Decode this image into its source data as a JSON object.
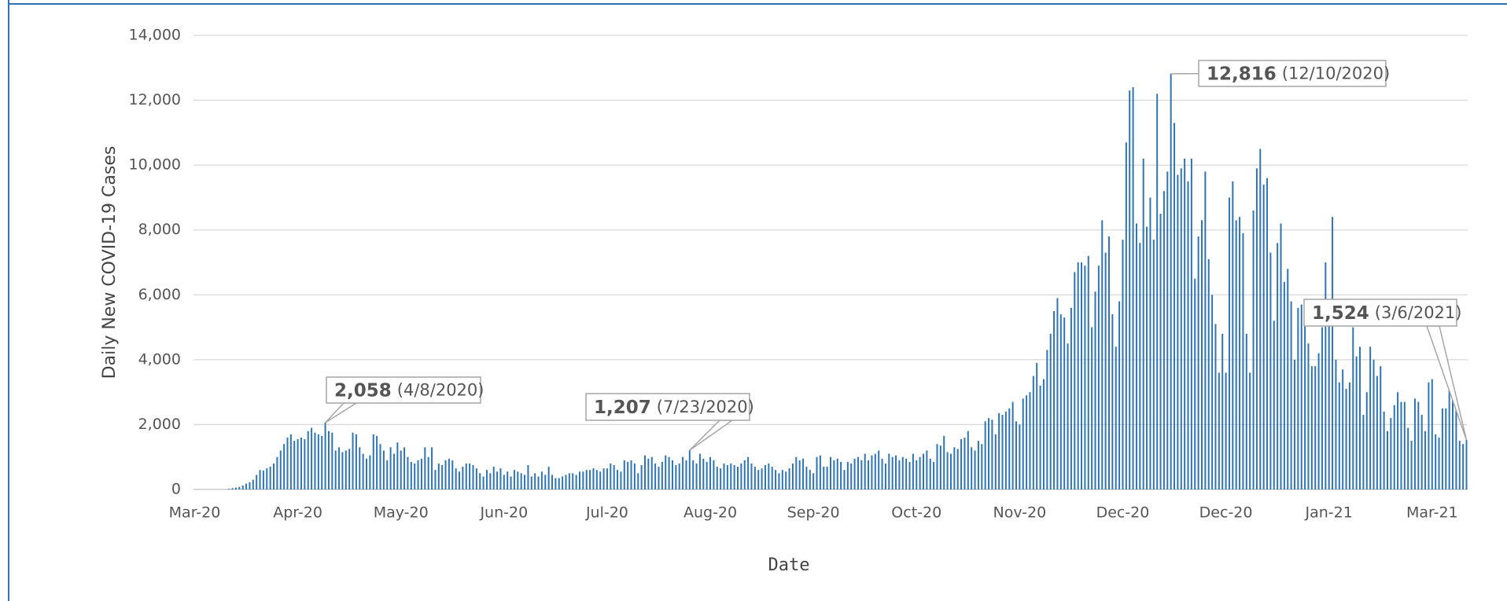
{
  "chart_data": {
    "type": "bar",
    "color": "#2e75b6",
    "grid": true,
    "y_label": "Daily New COVID-19 Cases",
    "x_label": "Date",
    "ylim": [
      0,
      14000
    ],
    "yticks": [
      0,
      {
        "value": 2000,
        "label": "2,000"
      },
      {
        "value": 4000,
        "label": "4,000"
      },
      {
        "value": 6000,
        "label": "6,000"
      },
      {
        "value": 8000,
        "label": "8,000"
      },
      {
        "value": 10000,
        "label": "10,000"
      },
      {
        "value": 12000,
        "label": "12,000"
      },
      {
        "value": 14000,
        "label": "14,000"
      }
    ],
    "categories": [
      "Mar-20",
      null,
      null,
      null,
      null,
      null,
      null,
      null,
      null,
      null,
      null,
      null,
      null,
      null,
      null,
      null,
      null,
      null,
      null,
      null,
      null,
      null,
      null,
      null,
      null,
      null,
      null,
      null,
      null,
      null,
      "Apr-20",
      null,
      null,
      null,
      null,
      null,
      null,
      null,
      null,
      null,
      null,
      null,
      null,
      null,
      null,
      null,
      null,
      null,
      null,
      null,
      null,
      null,
      null,
      null,
      null,
      null,
      null,
      null,
      null,
      null,
      "May-20",
      null,
      null,
      null,
      null,
      null,
      null,
      null,
      null,
      null,
      null,
      null,
      null,
      null,
      null,
      null,
      null,
      null,
      null,
      null,
      null,
      null,
      null,
      null,
      null,
      null,
      null,
      null,
      null,
      null,
      "Jun-20",
      null,
      null,
      null,
      null,
      null,
      null,
      null,
      null,
      null,
      null,
      null,
      null,
      null,
      null,
      null,
      null,
      null,
      null,
      null,
      null,
      null,
      null,
      null,
      null,
      null,
      null,
      null,
      null,
      null,
      "Jul-20",
      null,
      null,
      null,
      null,
      null,
      null,
      null,
      null,
      null,
      null,
      null,
      null,
      null,
      null,
      null,
      null,
      null,
      null,
      null,
      null,
      null,
      null,
      null,
      null,
      null,
      null,
      null,
      null,
      null,
      "Aug-20",
      null,
      null,
      null,
      null,
      null,
      null,
      null,
      null,
      null,
      null,
      null,
      null,
      null,
      null,
      null,
      null,
      null,
      null,
      null,
      null,
      null,
      null,
      null,
      null,
      null,
      null,
      null,
      null,
      null,
      "Sep-20",
      null,
      null,
      null,
      null,
      null,
      null,
      null,
      null,
      null,
      null,
      null,
      null,
      null,
      null,
      null,
      null,
      null,
      null,
      null,
      null,
      null,
      null,
      null,
      null,
      null,
      null,
      null,
      null,
      null,
      "Oct-20",
      null,
      null,
      null,
      null,
      null,
      null,
      null,
      null,
      null,
      null,
      null,
      null,
      null,
      null,
      null,
      null,
      null,
      null,
      null,
      null,
      null,
      null,
      null,
      null,
      null,
      null,
      null,
      null,
      null,
      "Nov-20",
      null,
      null,
      null,
      null,
      null,
      null,
      null,
      null,
      null,
      null,
      null,
      null,
      null,
      null,
      null,
      null,
      null,
      null,
      null,
      null,
      null,
      null,
      null,
      null,
      null,
      null,
      null,
      null,
      null,
      "Dec-20",
      null,
      null,
      null,
      null,
      null,
      null,
      null,
      null,
      null,
      null,
      null,
      null,
      null,
      null,
      null,
      null,
      null,
      null,
      null,
      null,
      null,
      null,
      null,
      null,
      null,
      null,
      null,
      null,
      null,
      "Dec-20",
      null,
      null,
      null,
      null,
      null,
      null,
      null,
      null,
      null,
      null,
      null,
      null,
      null,
      null,
      null,
      null,
      null,
      null,
      null,
      null,
      null,
      null,
      null,
      null,
      null,
      null,
      null,
      null,
      null,
      "Jan-21",
      null,
      null,
      null,
      null,
      null,
      null,
      null,
      null,
      null,
      null,
      null,
      null,
      null,
      null,
      null,
      null,
      null,
      null,
      null,
      null,
      null,
      null,
      null,
      null,
      null,
      null,
      null,
      null,
      null,
      "Mar-21",
      null,
      null,
      null,
      null,
      null,
      null,
      null,
      null,
      null,
      null
    ],
    "values": [
      0,
      0,
      0,
      0,
      0,
      0,
      0,
      0,
      0,
      0,
      20,
      40,
      60,
      80,
      120,
      180,
      220,
      300,
      450,
      600,
      580,
      650,
      700,
      800,
      1000,
      1200,
      1400,
      1600,
      1700,
      1500,
      1550,
      1600,
      1550,
      1800,
      1900,
      1750,
      1700,
      1650,
      2058,
      1800,
      1750,
      1200,
      1300,
      1150,
      1200,
      1250,
      1750,
      1700,
      1300,
      1100,
      950,
      1050,
      1700,
      1650,
      1400,
      1200,
      900,
      1300,
      1100,
      1450,
      1200,
      1300,
      1000,
      850,
      800,
      900,
      950,
      1300,
      1000,
      1300,
      600,
      800,
      750,
      900,
      950,
      900,
      650,
      550,
      700,
      800,
      800,
      750,
      650,
      500,
      400,
      600,
      500,
      700,
      550,
      650,
      450,
      550,
      400,
      600,
      550,
      500,
      450,
      750,
      400,
      500,
      400,
      550,
      450,
      700,
      450,
      350,
      350,
      400,
      450,
      500,
      500,
      450,
      550,
      550,
      600,
      600,
      650,
      600,
      550,
      650,
      650,
      800,
      750,
      600,
      550,
      900,
      850,
      900,
      800,
      500,
      750,
      1050,
      950,
      1000,
      800,
      700,
      850,
      1050,
      1000,
      900,
      750,
      800,
      1000,
      900,
      1207,
      900,
      800,
      1100,
      950,
      850,
      1000,
      900,
      700,
      650,
      800,
      750,
      800,
      750,
      700,
      800,
      900,
      1000,
      800,
      700,
      600,
      650,
      750,
      800,
      700,
      600,
      500,
      600,
      550,
      650,
      800,
      1000,
      900,
      950,
      700,
      600,
      500,
      1000,
      1050,
      700,
      700,
      1000,
      900,
      950,
      850,
      600,
      850,
      800,
      950,
      1000,
      900,
      1100,
      900,
      1050,
      1100,
      1200,
      950,
      800,
      1100,
      1000,
      1050,
      900,
      1000,
      950,
      850,
      1100,
      900,
      1000,
      1100,
      1200,
      950,
      850,
      1400,
      1350,
      1650,
      1150,
      1100,
      1300,
      1250,
      1550,
      1600,
      1800,
      1300,
      1200,
      1500,
      1400,
      2100,
      2200,
      2150,
      1700,
      2350,
      2300,
      2400,
      2500,
      2700,
      2100,
      2000,
      2800,
      2900,
      3000,
      3500,
      3900,
      3200,
      3400,
      4300,
      4800,
      5500,
      5900,
      5400,
      5300,
      4500,
      5600,
      6700,
      7000,
      7000,
      6900,
      7200,
      5000,
      6100,
      6900,
      8300,
      7300,
      7800,
      5400,
      4400,
      5800,
      7700,
      10700,
      12300,
      12400,
      8200,
      7600,
      10200,
      8100,
      9000,
      7700,
      12200,
      8500,
      9200,
      9800,
      12816,
      11300,
      9700,
      9900,
      10200,
      9500,
      10200,
      6500,
      7800,
      8300,
      9800,
      7100,
      6000,
      5100,
      3600,
      4800,
      3600,
      9000,
      9500,
      8300,
      8400,
      7900,
      4800,
      3600,
      8600,
      9900,
      10500,
      9400,
      9600,
      7300,
      5200,
      7600,
      8200,
      6400,
      6800,
      5800,
      4000,
      5600,
      5700,
      5800,
      4500,
      3800,
      3800,
      4200,
      5000,
      7000,
      5400,
      8400,
      4000,
      3300,
      3700,
      3100,
      3300,
      5000,
      4100,
      4400,
      2300,
      3000,
      4400,
      4000,
      3500,
      3800,
      2400,
      1800,
      2200,
      2600,
      3000,
      2700,
      2700,
      1900,
      1500,
      2800,
      2700,
      2300,
      1800,
      3300,
      3400,
      1700,
      1600,
      2500,
      2500,
      3200,
      2800,
      2700,
      1500,
      1400,
      1524
    ],
    "annotations": [
      {
        "value": 2058,
        "value_label": "2,058",
        "date": "(4/8/2020)"
      },
      {
        "value": 1207,
        "value_label": "1,207",
        "date": "(7/23/2020)"
      },
      {
        "value": 12816,
        "value_label": "12,816",
        "date": "(12/10/2020)"
      },
      {
        "value": 1524,
        "value_label": "1,524",
        "date": "(3/6/2021)"
      }
    ]
  }
}
